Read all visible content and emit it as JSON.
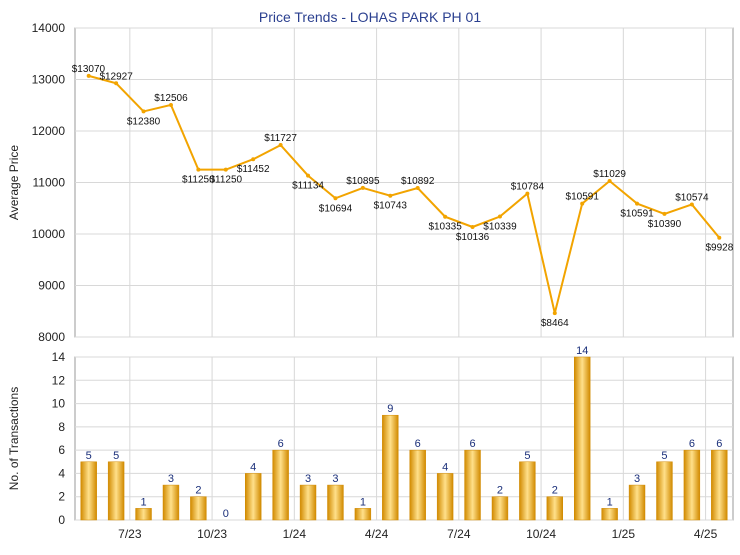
{
  "colors": {
    "line": "#f2a400",
    "bar_dark": "#d18a00",
    "bar_light": "#ffe08a",
    "title": "#2a3f8f",
    "bar_label": "#1a2f7a"
  },
  "chart_data": [
    {
      "type": "line",
      "title": "Price Trends - LOHAS PARK PH 01",
      "ylabel": "Average Price",
      "xlabel": "",
      "ylim": [
        8000,
        14000
      ],
      "yticks": [
        8000,
        9000,
        10000,
        11000,
        12000,
        13000,
        14000
      ],
      "grid": true,
      "series": [
        {
          "values": [
            13070,
            12927,
            12380,
            12506,
            11250,
            11250,
            11452,
            11727,
            11134,
            10694,
            10895,
            10743,
            10892,
            10335,
            10136,
            10339,
            10784,
            8464,
            10591,
            11029,
            10591,
            10390,
            10574,
            9928
          ],
          "labels": [
            "$13070",
            "$12927",
            "$12380",
            "$12506",
            "$11250",
            "$11250",
            "$11452",
            "$11727",
            "$11134",
            "$10694",
            "$10895",
            "$10743",
            "$10892",
            "$10335",
            "$10136",
            "$10339",
            "$10784",
            "$8464",
            "$10591",
            "$11029",
            "$10591",
            "$10390",
            "$10574",
            "$9928"
          ]
        }
      ]
    },
    {
      "type": "bar",
      "ylabel": "No. of Transactions",
      "xlabel": "",
      "ylim": [
        0,
        14
      ],
      "yticks": [
        0,
        2,
        4,
        6,
        8,
        10,
        12,
        14
      ],
      "grid": true,
      "values": [
        5,
        5,
        1,
        3,
        2,
        0,
        4,
        6,
        3,
        3,
        1,
        9,
        6,
        4,
        6,
        2,
        5,
        2,
        14,
        1,
        3,
        5,
        6,
        6
      ],
      "x_tick_labels": [
        {
          "index": 1.5,
          "label": "7/23"
        },
        {
          "index": 4.5,
          "label": "10/23"
        },
        {
          "index": 7.5,
          "label": "1/24"
        },
        {
          "index": 10.5,
          "label": "4/24"
        },
        {
          "index": 13.5,
          "label": "7/24"
        },
        {
          "index": 16.5,
          "label": "10/24"
        },
        {
          "index": 19.5,
          "label": "1/25"
        },
        {
          "index": 22.5,
          "label": "4/25"
        }
      ]
    }
  ]
}
